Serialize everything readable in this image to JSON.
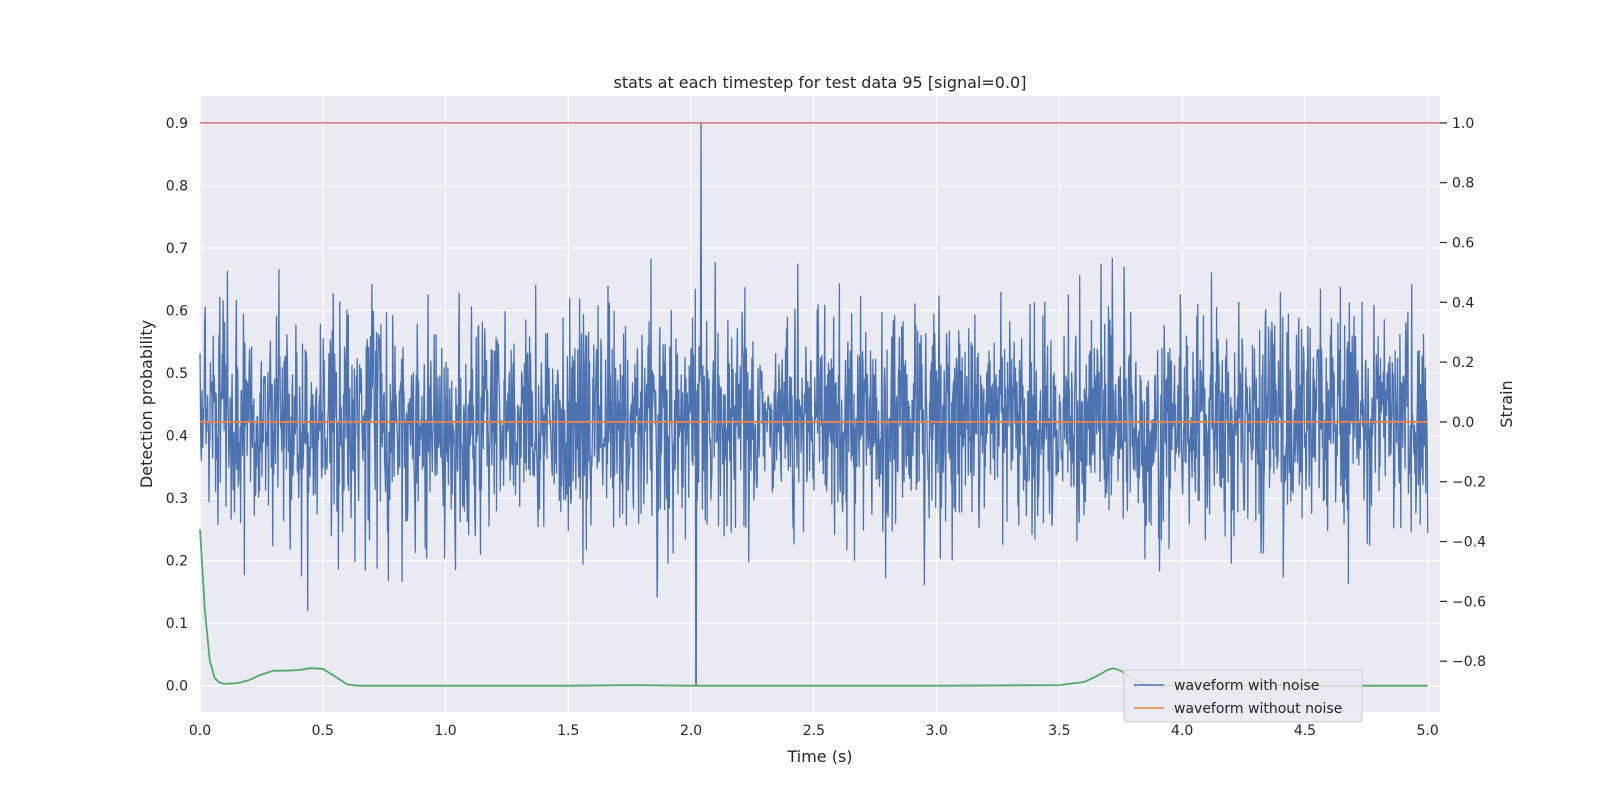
{
  "chart_data": {
    "type": "line",
    "title": "stats at each timestep for test data 95 [signal=0.0]",
    "xlabel": "Time (s)",
    "ylabel": "Detection probability",
    "ylabel_right": "Strain",
    "xlim": [
      0.0,
      5.05
    ],
    "ylim": [
      -0.042,
      0.943
    ],
    "ylim_right": [
      -0.97,
      1.09
    ],
    "x_ticks": [
      "0.0",
      "0.5",
      "1.0",
      "1.5",
      "2.0",
      "2.5",
      "3.0",
      "3.5",
      "4.0",
      "4.5",
      "5.0"
    ],
    "y_ticks": [
      "0.0",
      "0.1",
      "0.2",
      "0.3",
      "0.4",
      "0.5",
      "0.6",
      "0.7",
      "0.8",
      "0.9"
    ],
    "y_ticks_right": [
      "1.0",
      "0.8",
      "0.6",
      "0.4",
      "0.2",
      "0.0",
      "−0.2",
      "−0.4",
      "−0.6",
      "−0.8"
    ],
    "grid": true,
    "legend_position": "lower-right",
    "threshold": {
      "y": 0.9,
      "color": "#d65f5f"
    },
    "series": [
      {
        "name": "waveform with noise",
        "axis": "right",
        "color": "#4c72b0",
        "kind": "noise",
        "x_range": [
          0.0,
          5.0
        ],
        "approx_std": 0.18,
        "max": 1.0,
        "min": -0.88
      },
      {
        "name": "waveform without noise",
        "axis": "right",
        "color": "#dd8452",
        "x": [
          0.0,
          5.0
        ],
        "y": [
          0.0,
          0.0
        ]
      },
      {
        "axis": "left",
        "color": "#55a868",
        "x": [
          0.0,
          0.02,
          0.04,
          0.06,
          0.08,
          0.1,
          0.15,
          0.2,
          0.25,
          0.3,
          0.35,
          0.4,
          0.45,
          0.5,
          0.55,
          0.6,
          0.65,
          0.7,
          1.0,
          1.5,
          1.75,
          2.0,
          2.5,
          3.0,
          3.5,
          3.6,
          3.65,
          3.7,
          3.72,
          3.75,
          3.8,
          3.85,
          3.9,
          4.0,
          4.5,
          5.0
        ],
        "y": [
          0.25,
          0.12,
          0.04,
          0.012,
          0.005,
          0.003,
          0.004,
          0.009,
          0.018,
          0.024,
          0.024,
          0.025,
          0.028,
          0.027,
          0.015,
          0.002,
          0.0,
          0.0,
          0.0,
          0.0,
          0.001,
          0.0,
          0.0,
          0.0,
          0.001,
          0.006,
          0.015,
          0.026,
          0.028,
          0.024,
          0.01,
          0.003,
          0.0,
          0.0,
          0.0,
          0.0
        ]
      }
    ]
  }
}
